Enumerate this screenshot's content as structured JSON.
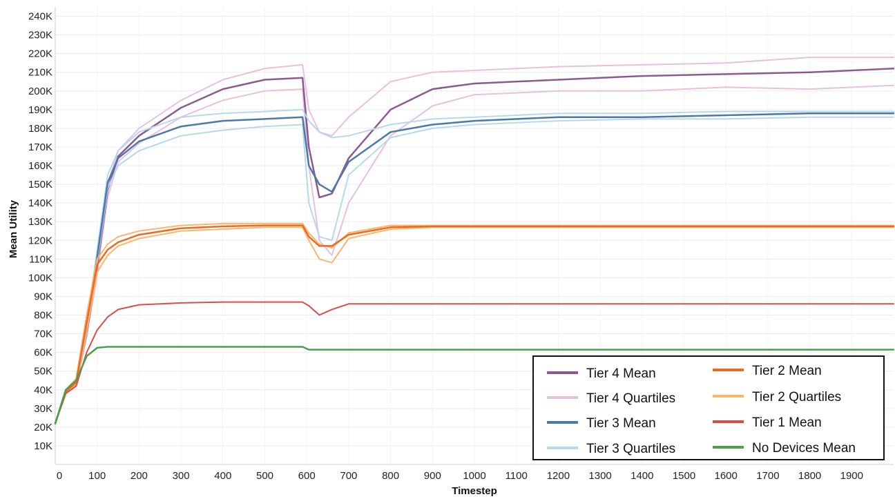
{
  "chart_data": {
    "type": "line",
    "xlabel": "Timestep",
    "ylabel": "Mean Utility",
    "xlim": [
      0,
      2000
    ],
    "ylim": [
      0,
      245000
    ],
    "grid": true,
    "legend_position": "bottom-right",
    "x_ticks": [
      0,
      100,
      200,
      300,
      400,
      500,
      600,
      700,
      800,
      900,
      1000,
      1100,
      1200,
      1300,
      1400,
      1500,
      1600,
      1700,
      1800,
      1900
    ],
    "x_tick_labels": [
      "0",
      "100",
      "200",
      "300",
      "400",
      "500",
      "600",
      "700",
      "800",
      "900",
      "1000",
      "1100",
      "1200",
      "1300",
      "1400",
      "1500",
      "1600",
      "1700",
      "1800",
      "1900"
    ],
    "y_ticks": [
      10000,
      20000,
      30000,
      40000,
      50000,
      60000,
      70000,
      80000,
      90000,
      100000,
      110000,
      120000,
      130000,
      140000,
      150000,
      160000,
      170000,
      180000,
      190000,
      200000,
      210000,
      220000,
      230000,
      240000
    ],
    "y_tick_labels": [
      "10K",
      "20K",
      "30K",
      "40K",
      "50K",
      "60K",
      "70K",
      "80K",
      "90K",
      "100K",
      "110K",
      "120K",
      "130K",
      "140K",
      "150K",
      "160K",
      "170K",
      "180K",
      "190K",
      "200K",
      "210K",
      "220K",
      "230K",
      "240K"
    ],
    "x": [
      0,
      25,
      50,
      75,
      100,
      125,
      150,
      200,
      300,
      400,
      500,
      590,
      605,
      630,
      660,
      700,
      800,
      900,
      1000,
      1200,
      1400,
      1600,
      1800,
      2000
    ],
    "series": [
      {
        "name": "Tier 4 Quartiles",
        "color": "#e7bfe0",
        "width": 2,
        "values": [
          22000,
          40000,
          45000,
          72000,
          110000,
          150000,
          168000,
          180000,
          195000,
          206000,
          212000,
          214000,
          190000,
          178000,
          176000,
          186000,
          205000,
          210000,
          211000,
          213000,
          214000,
          215000,
          218000,
          218000
        ]
      },
      {
        "name": "Tier 4 Quartiles",
        "color": "#e7bfe0",
        "width": 2,
        "values": [
          22000,
          38000,
          43000,
          68000,
          102000,
          143000,
          162000,
          172000,
          186000,
          195000,
          200000,
          201000,
          160000,
          120000,
          112000,
          140000,
          176000,
          192000,
          198000,
          200000,
          200000,
          202000,
          201000,
          203000
        ]
      },
      {
        "name": "Tier 4 Mean",
        "color": "#8b5a8e",
        "width": 2.5,
        "values": [
          22000,
          39000,
          44000,
          70000,
          106000,
          147000,
          165000,
          176000,
          191000,
          201000,
          206000,
          207000,
          170000,
          143000,
          145000,
          164000,
          190000,
          201000,
          204000,
          206000,
          208000,
          209000,
          210000,
          212000
        ]
      },
      {
        "name": "Tier 3 Quartiles",
        "color": "#b6d8ec",
        "width": 2,
        "values": [
          22000,
          40000,
          46000,
          75000,
          115000,
          155000,
          168000,
          178000,
          186000,
          188000,
          189000,
          190000,
          184000,
          178000,
          175000,
          176000,
          182000,
          185000,
          186000,
          188000,
          188000,
          189000,
          189000,
          189000
        ]
      },
      {
        "name": "Tier 3 Quartiles",
        "color": "#b6d8ec",
        "width": 2,
        "values": [
          22000,
          38000,
          44000,
          70000,
          108000,
          148000,
          160000,
          168000,
          176000,
          179000,
          181000,
          182000,
          140000,
          122000,
          120000,
          155000,
          175000,
          180000,
          182000,
          184000,
          185000,
          185000,
          186000,
          186000
        ]
      },
      {
        "name": "Tier 3 Mean",
        "color": "#4a79a8",
        "width": 2.5,
        "values": [
          22000,
          39000,
          45000,
          72000,
          111000,
          151000,
          164000,
          173000,
          181000,
          184000,
          185000,
          186000,
          160000,
          150000,
          146000,
          162000,
          178000,
          182000,
          184000,
          186000,
          186000,
          187000,
          188000,
          188000
        ]
      },
      {
        "name": "Tier 2 Quartiles",
        "color": "#fdb46b",
        "width": 2,
        "values": [
          22000,
          40000,
          46000,
          80000,
          110000,
          118000,
          122000,
          125000,
          128000,
          129000,
          129000,
          129000,
          124000,
          118000,
          116000,
          124000,
          128000,
          128000,
          128000,
          128000,
          128000,
          128000,
          128000,
          128000
        ]
      },
      {
        "name": "Tier 2 Quartiles",
        "color": "#fdb46b",
        "width": 2,
        "values": [
          22000,
          38000,
          43000,
          72000,
          103000,
          112000,
          117000,
          121000,
          125000,
          126000,
          127000,
          127000,
          120000,
          110000,
          108000,
          121000,
          126000,
          127000,
          127000,
          127000,
          127000,
          127000,
          127000,
          127000
        ]
      },
      {
        "name": "Tier 2 Mean",
        "color": "#ec6a1f",
        "width": 2.5,
        "values": [
          22000,
          39000,
          44000,
          76000,
          107000,
          115000,
          119000,
          123000,
          126500,
          127500,
          128000,
          128000,
          122000,
          117000,
          117000,
          123000,
          127000,
          127500,
          127500,
          127500,
          127500,
          127500,
          127500,
          127500
        ]
      },
      {
        "name": "Tier 1 Mean",
        "color": "#dd4a4a",
        "width": 2,
        "values": [
          22000,
          38000,
          42000,
          60000,
          72000,
          79000,
          83000,
          85500,
          86500,
          87000,
          87000,
          87000,
          85000,
          80000,
          83000,
          86000,
          86000,
          86000,
          86000,
          86000,
          86000,
          86000,
          86000,
          86000
        ]
      },
      {
        "name": "No Devices Mean",
        "color": "#4aa04a",
        "width": 2.5,
        "values": [
          22000,
          40000,
          45000,
          58000,
          62500,
          63000,
          63000,
          63000,
          63000,
          63000,
          63000,
          63000,
          61500,
          61500,
          61500,
          61500,
          61500,
          61500,
          61500,
          61500,
          61500,
          61500,
          61500,
          61500
        ]
      }
    ],
    "legend": [
      {
        "label": "Tier 4 Mean",
        "color": "#8b5a8e"
      },
      {
        "label": "Tier 4 Quartiles",
        "color": "#e7bfe0"
      },
      {
        "label": "Tier 3 Mean",
        "color": "#4a79a8"
      },
      {
        "label": "Tier 3 Quartiles",
        "color": "#b6d8ec"
      },
      {
        "label": "Tier 2 Mean",
        "color": "#ec6a1f"
      },
      {
        "label": "Tier 2 Quartiles",
        "color": "#fdb46b"
      },
      {
        "label": "Tier 1 Mean",
        "color": "#dd4a4a"
      },
      {
        "label": "No Devices Mean",
        "color": "#4aa04a"
      }
    ]
  }
}
